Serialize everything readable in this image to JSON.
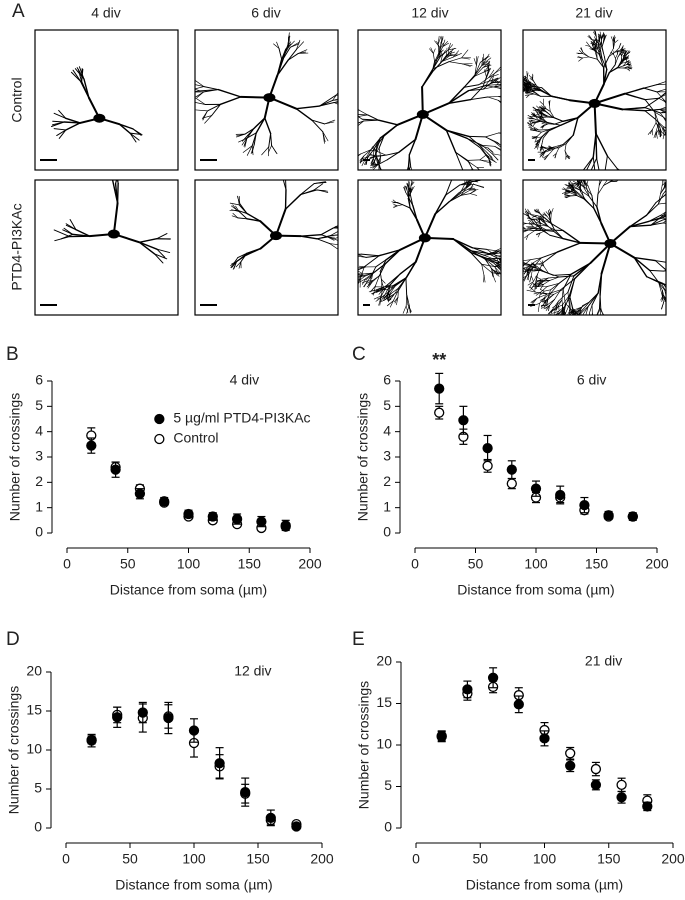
{
  "panel_a": {
    "label": "A",
    "columns": [
      "4 div",
      "6 div",
      "12  div",
      "21  div"
    ],
    "rows": [
      "Control",
      "PTD4-PI3KAc"
    ]
  },
  "chart_data": [
    {
      "type": "scatter",
      "panel": "B",
      "title": "4 div",
      "x_label": "Distance from soma (µm)",
      "y_label": "Number of crossings",
      "x": [
        20,
        40,
        60,
        80,
        100,
        120,
        140,
        160,
        180
      ],
      "xlim": [
        0,
        200
      ],
      "xticks": [
        0,
        50,
        100,
        150,
        200
      ],
      "ylim": [
        0,
        6
      ],
      "yticks": [
        0,
        1,
        2,
        3,
        4,
        5,
        6
      ],
      "legend": "upper right",
      "series": [
        {
          "name": "5 µg/ml PTD4-PI3KAc",
          "color": "#000000",
          "filled": true,
          "values": [
            3.45,
            2.5,
            1.55,
            1.25,
            0.75,
            0.65,
            0.55,
            0.45,
            0.3
          ],
          "errors": [
            0.3,
            0.3,
            0.2,
            0.15,
            0.15,
            0.15,
            0.2,
            0.2,
            0.2
          ]
        },
        {
          "name": "Control",
          "color": "#000000",
          "filled": false,
          "values": [
            3.85,
            2.6,
            1.75,
            1.2,
            0.65,
            0.5,
            0.35,
            0.2,
            0.25
          ],
          "errors": [
            0.3,
            0.2,
            0.15,
            0.1,
            0.1,
            0.1,
            0.1,
            0.1,
            0.1
          ]
        }
      ]
    },
    {
      "type": "scatter",
      "panel": "C",
      "title": "6 div",
      "annotation": "**",
      "x_label": "Distance from soma (µm)",
      "y_label": "Number of crossings",
      "x": [
        20,
        40,
        60,
        80,
        100,
        120,
        140,
        160,
        180
      ],
      "xlim": [
        0,
        200
      ],
      "xticks": [
        0,
        50,
        100,
        150,
        200
      ],
      "ylim": [
        0,
        6
      ],
      "yticks": [
        0,
        1,
        2,
        3,
        4,
        5,
        6
      ],
      "series": [
        {
          "name": "5 µg/ml PTD4-PI3KAc",
          "color": "#000000",
          "filled": true,
          "values": [
            5.7,
            4.45,
            3.35,
            2.5,
            1.75,
            1.5,
            1.1,
            0.7,
            0.65
          ],
          "errors": [
            0.6,
            0.55,
            0.5,
            0.35,
            0.3,
            0.35,
            0.3,
            0.15,
            0.15
          ]
        },
        {
          "name": "Control",
          "color": "#000000",
          "filled": false,
          "values": [
            4.75,
            3.8,
            2.65,
            1.95,
            1.4,
            1.4,
            0.9,
            0.65,
            0.65
          ],
          "errors": [
            0.25,
            0.3,
            0.25,
            0.2,
            0.2,
            0.2,
            0.15,
            0.1,
            0.1
          ]
        }
      ]
    },
    {
      "type": "scatter",
      "panel": "D",
      "title": "12  div",
      "x_label": "Distance from soma (µm)",
      "y_label": "Number of crossings",
      "x": [
        20,
        40,
        60,
        80,
        100,
        120,
        140,
        160,
        180
      ],
      "xlim": [
        0,
        200
      ],
      "xticks": [
        0,
        50,
        100,
        150,
        200
      ],
      "ylim": [
        0,
        20
      ],
      "yticks": [
        0,
        5,
        10,
        15,
        20
      ],
      "series": [
        {
          "name": "5 µg/ml PTD4-PI3KAc",
          "color": "#000000",
          "filled": true,
          "values": [
            11.2,
            14.2,
            14.8,
            14.1,
            12.5,
            8.3,
            4.6,
            1.3,
            0.2
          ],
          "errors": [
            0.8,
            1.3,
            1.3,
            2.0,
            1.5,
            2.0,
            1.8,
            1.0,
            0.3
          ]
        },
        {
          "name": "Control",
          "color": "#000000",
          "filled": false,
          "values": [
            11.3,
            14.5,
            14.1,
            14.3,
            10.9,
            7.9,
            4.4,
            1.0,
            0.5
          ],
          "errors": [
            0.5,
            1.0,
            1.8,
            1.5,
            1.8,
            1.5,
            1.2,
            0.6,
            0.3
          ]
        }
      ]
    },
    {
      "type": "scatter",
      "panel": "E",
      "title": "21  div",
      "x_label": "Distance from soma (µm)",
      "y_label": "Number of crossings",
      "x": [
        20,
        40,
        60,
        80,
        100,
        120,
        140,
        160,
        180
      ],
      "xlim": [
        0,
        200
      ],
      "xticks": [
        0,
        50,
        100,
        150,
        200
      ],
      "ylim": [
        0,
        20
      ],
      "yticks": [
        0,
        5,
        10,
        15,
        20
      ],
      "series": [
        {
          "name": "5 µg/ml PTD4-PI3KAc",
          "color": "#000000",
          "filled": true,
          "values": [
            11.0,
            16.7,
            18.1,
            14.9,
            10.8,
            7.5,
            5.2,
            3.7,
            2.6
          ],
          "errors": [
            0.6,
            1.0,
            1.2,
            1.0,
            0.9,
            0.7,
            0.6,
            0.7,
            0.5
          ]
        },
        {
          "name": "Control",
          "color": "#000000",
          "filled": false,
          "values": [
            11.1,
            16.2,
            17.0,
            16.0,
            11.8,
            9.0,
            7.1,
            5.2,
            3.3
          ],
          "errors": [
            0.6,
            0.8,
            0.7,
            0.9,
            0.9,
            0.7,
            0.8,
            0.8,
            0.7
          ]
        }
      ]
    }
  ]
}
